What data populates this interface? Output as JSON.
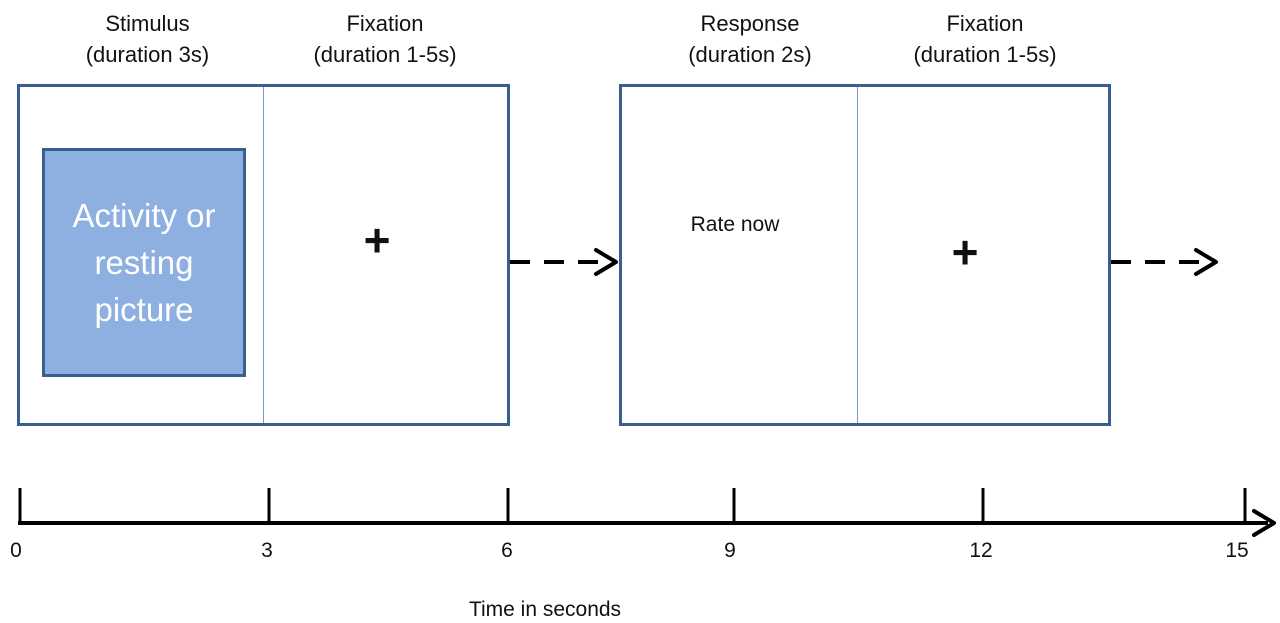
{
  "phases": [
    {
      "title": "Stimulus",
      "duration": "(duration 3s)"
    },
    {
      "title": "Fixation",
      "duration": "(duration 1-5s)"
    },
    {
      "title": "Response",
      "duration": "(duration 2s)"
    },
    {
      "title": "Fixation",
      "duration": "(duration 1-5s)"
    }
  ],
  "stimulus_text": "Activity or resting picture",
  "fixation_symbol": "+",
  "response_prompt": "Rate now",
  "timeline": {
    "ticks": [
      "0",
      "3",
      "6",
      "9",
      "12",
      "15"
    ],
    "axis_title": "Time in seconds"
  },
  "colors": {
    "panel_border": "#3a5f8f",
    "stimulus_fill": "#8db0e1",
    "divider": "#6f9bd0"
  }
}
